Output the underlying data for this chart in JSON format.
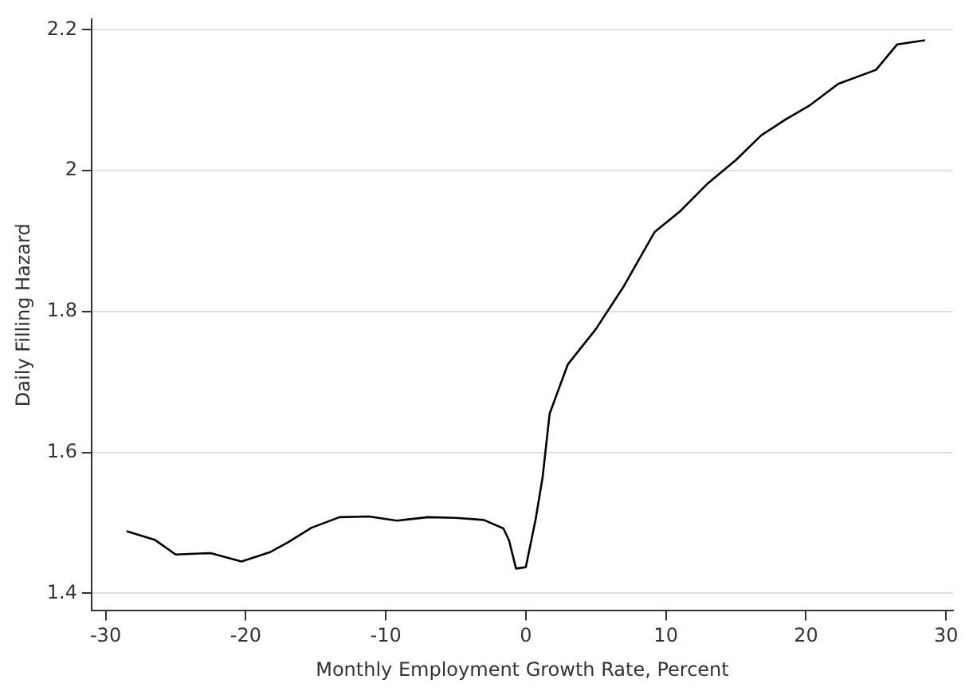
{
  "chart_data": {
    "type": "line",
    "xlabel": "Monthly Employment Growth Rate, Percent",
    "ylabel": "Daily Filling Hazard",
    "x": [
      -28.5,
      -26.5,
      -25,
      -22.5,
      -20.3,
      -18.3,
      -17,
      -15.3,
      -13.3,
      -11.2,
      -9.2,
      -7,
      -5,
      -3,
      -1.6,
      -1.2,
      -0.7,
      0,
      0.7,
      1.2,
      1.7,
      3,
      5,
      7,
      9.2,
      11,
      13,
      15,
      16.8,
      18.5,
      20.3,
      22.3,
      25,
      26.5,
      28.5
    ],
    "series": [
      {
        "color": "#000000",
        "values": [
          1.488,
          1.476,
          1.455,
          1.457,
          1.445,
          1.458,
          1.472,
          1.493,
          1.508,
          1.509,
          1.503,
          1.508,
          1.507,
          1.504,
          1.492,
          1.475,
          1.435,
          1.437,
          1.505,
          1.565,
          1.655,
          1.725,
          1.775,
          1.836,
          1.913,
          1.942,
          1.982,
          2.015,
          2.05,
          2.072,
          2.093,
          2.123,
          2.143,
          2.179,
          2.185
        ]
      }
    ],
    "xlim": [
      -31,
      30.5
    ],
    "ylim": [
      1.375,
      2.215
    ],
    "xticks": [
      -30,
      -20,
      -10,
      0,
      10,
      20,
      30
    ],
    "yticks": [
      1.4,
      1.6,
      1.8,
      2,
      2.2
    ],
    "grid": "y",
    "legend": false,
    "marker": "none",
    "line_style": "solid"
  }
}
